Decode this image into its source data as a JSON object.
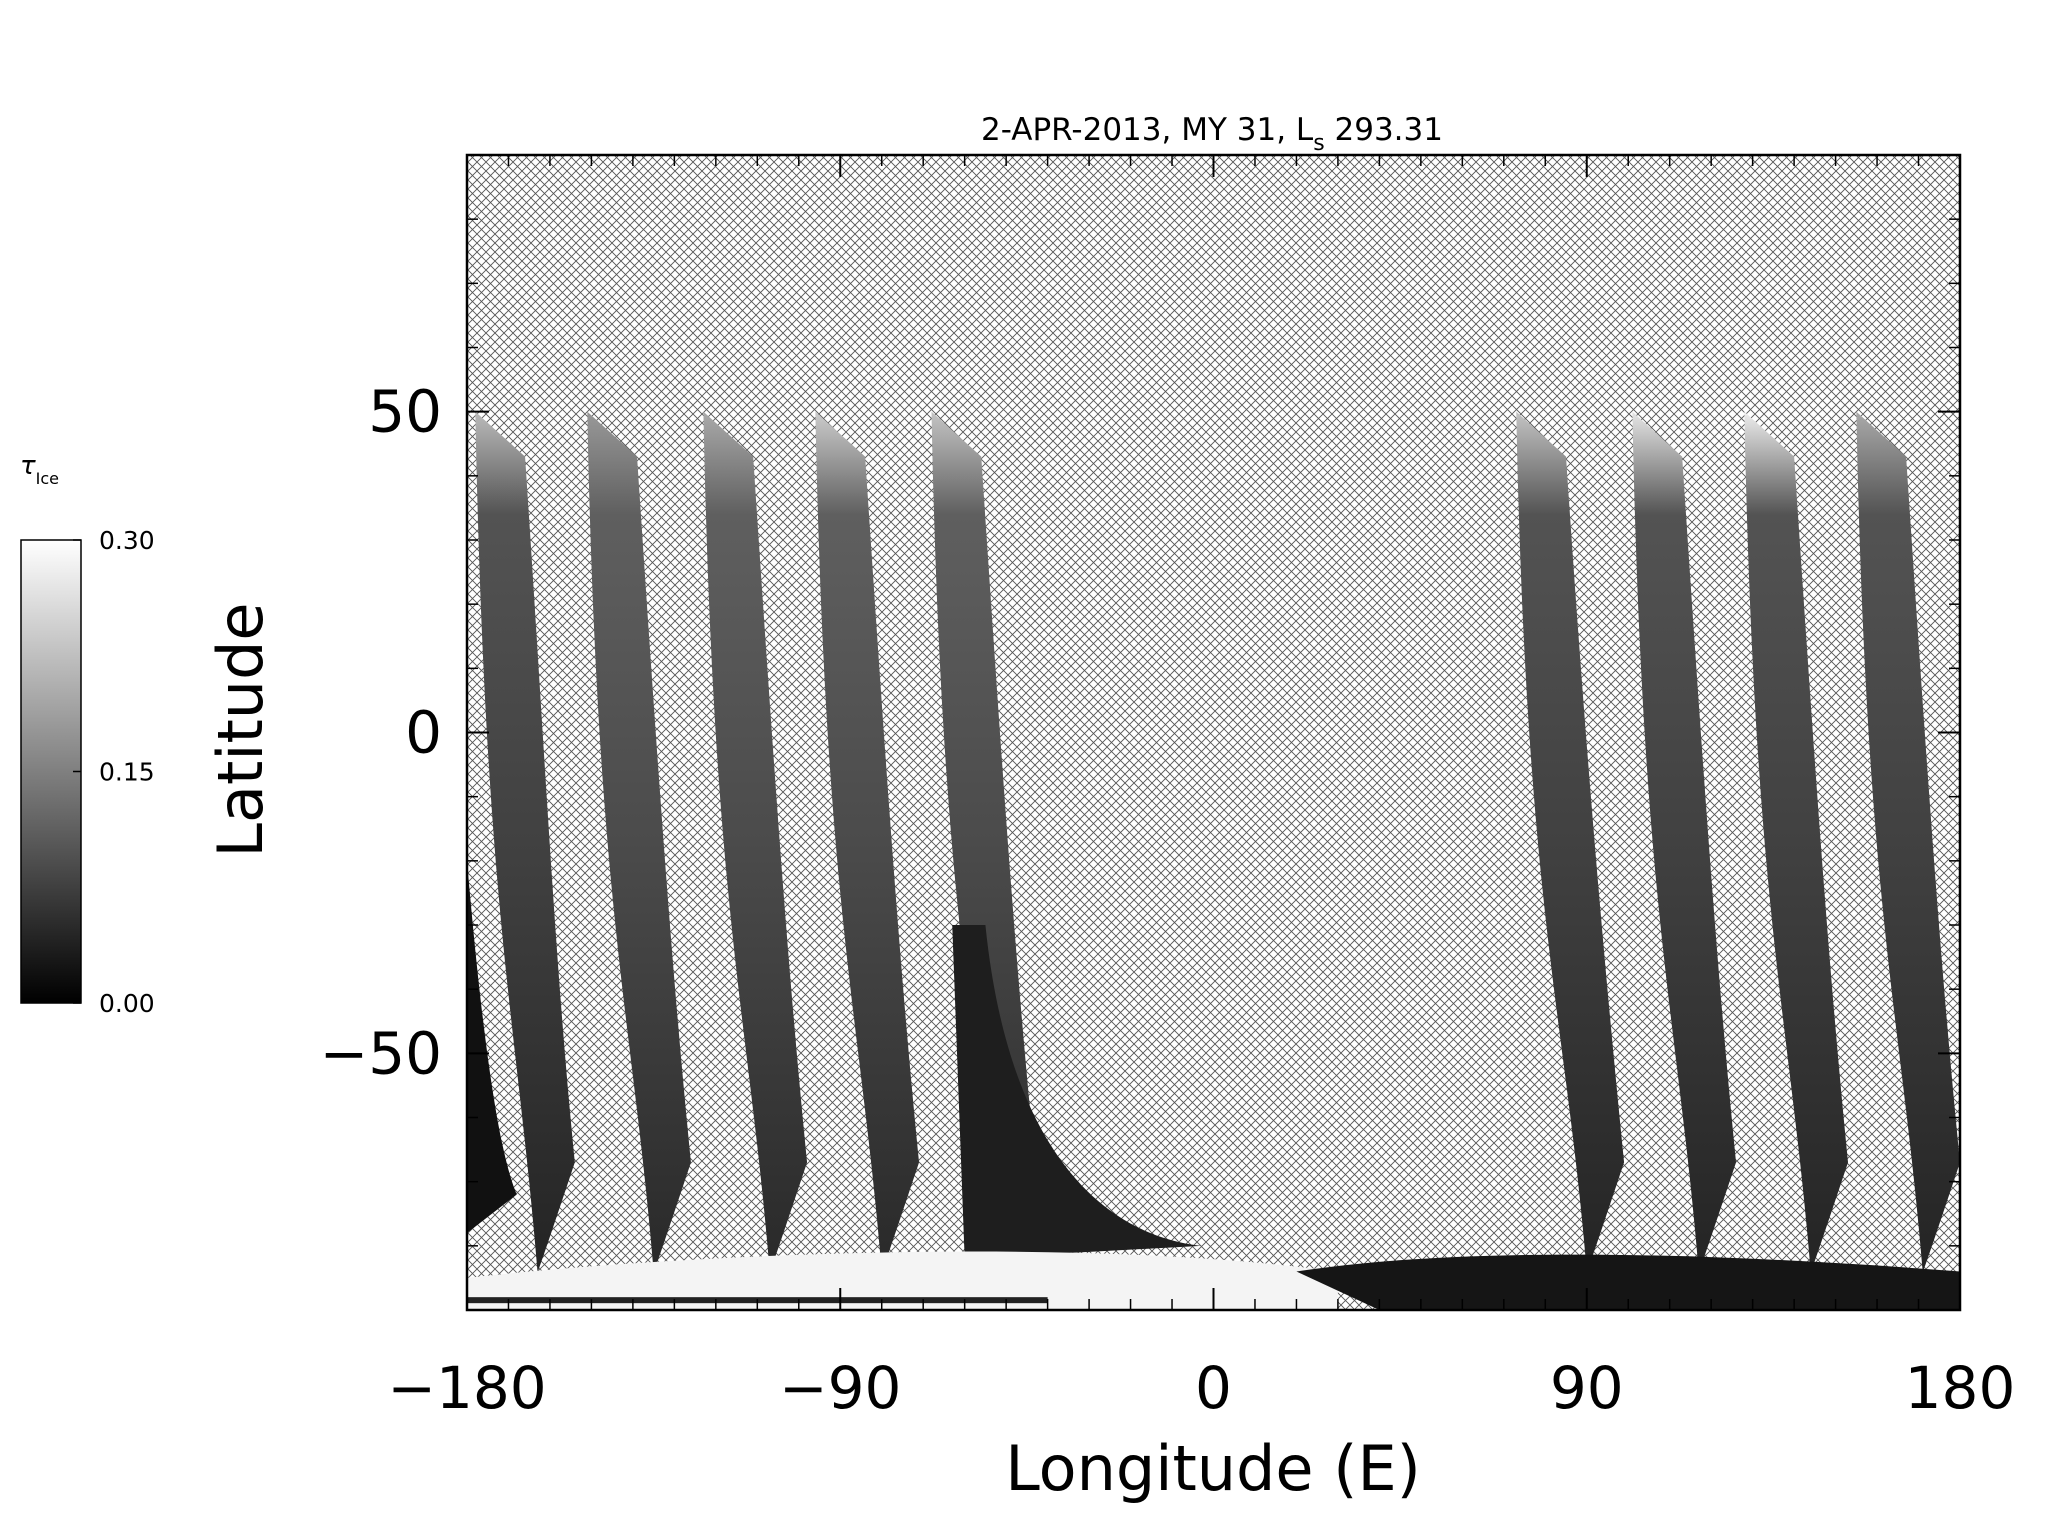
{
  "chart_data": {
    "type": "heatmap",
    "title": "2-APR-2013, MY 31,  L",
    "title_subscript": "s",
    "title_suffix": " 293.31",
    "xlabel": "Longitude (E)",
    "ylabel": "Latitude",
    "xlim": [
      -180,
      180
    ],
    "ylim": [
      -90,
      90
    ],
    "x_ticks": [
      -180,
      -90,
      0,
      90,
      180
    ],
    "x_tick_labels": [
      "−180",
      "−90",
      "0",
      "90",
      "180"
    ],
    "y_ticks": [
      -50,
      0,
      50
    ],
    "y_tick_labels": [
      "−50",
      "0",
      "50"
    ],
    "no_data_pattern": "crosshatch",
    "colorbar": {
      "label_main": "τ",
      "label_sub": "Ice",
      "range": [
        0,
        0.3
      ],
      "ticks": [
        0.0,
        0.15,
        0.3
      ],
      "tick_labels": [
        "0.00",
        "0.15",
        "0.30"
      ],
      "colormap": "grayscale"
    },
    "swaths": [
      {
        "lon_north": -178,
        "lon_south": -166,
        "value": 0.07,
        "top_value": 0.22
      },
      {
        "lon_north": -151,
        "lon_south": -138,
        "value": 0.08,
        "top_value": 0.18
      },
      {
        "lon_north": -123,
        "lon_south": -110,
        "value": 0.08,
        "top_value": 0.2
      },
      {
        "lon_north": -96,
        "lon_south": -83,
        "value": 0.08,
        "top_value": 0.24
      },
      {
        "lon_north": -68,
        "lon_south": -55,
        "value": 0.08,
        "top_value": 0.23
      },
      {
        "lon_north": 73,
        "lon_south": 87,
        "value": 0.07,
        "top_value": 0.23
      },
      {
        "lon_north": 101,
        "lon_south": 114,
        "value": 0.07,
        "top_value": 0.27
      },
      {
        "lon_north": 128,
        "lon_south": 141,
        "value": 0.07,
        "top_value": 0.28
      },
      {
        "lon_north": 155,
        "lon_south": 168,
        "value": 0.07,
        "top_value": 0.2
      }
    ]
  }
}
